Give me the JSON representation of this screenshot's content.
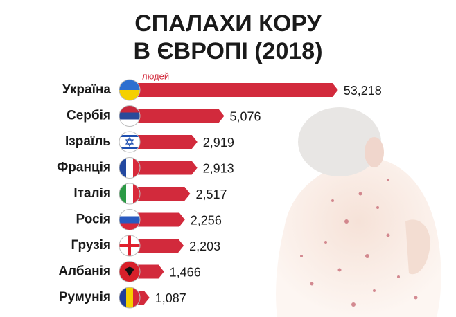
{
  "chart_data": {
    "type": "bar",
    "orientation": "horizontal",
    "title": [
      "СПАЛАХИ КОРУ",
      "В ЄВРОПІ (2018)"
    ],
    "annotation": "людей",
    "categories": [
      "Україна",
      "Сербія",
      "Ізраїль",
      "Франція",
      "Італія",
      "Росія",
      "Грузія",
      "Албанія",
      "Румунія"
    ],
    "values": [
      53218,
      5076,
      2919,
      2913,
      2517,
      2256,
      2203,
      1466,
      1087
    ],
    "value_labels": [
      "53,218",
      "5,076",
      "2,919",
      "2,913",
      "2,517",
      "2,256",
      "2,203",
      "1,466",
      "1,087"
    ],
    "color": "#d22a3c",
    "log_scale": true,
    "xlim": [
      700,
      55000
    ]
  }
}
